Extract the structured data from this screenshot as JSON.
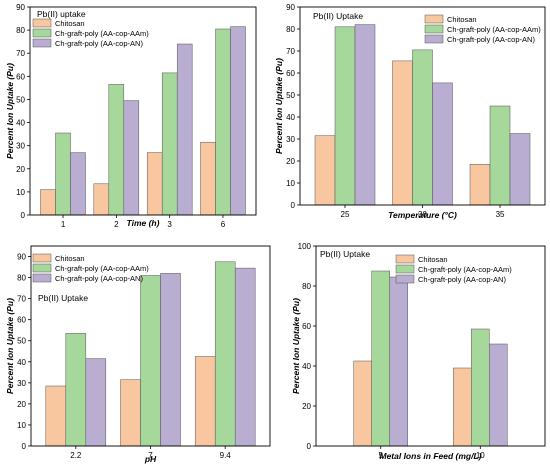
{
  "chart_data": [
    {
      "type": "bar",
      "title": "Pb(II) uptake",
      "xlabel": "Time (h)",
      "ylabel": "Percent Ion Uptake (Pu)",
      "categories": [
        "1",
        "2",
        "3",
        "6"
      ],
      "ylim": [
        0,
        90
      ],
      "yticks": [
        0,
        10,
        20,
        30,
        40,
        50,
        60,
        70,
        80,
        90
      ],
      "legend_position": "top-left",
      "series": [
        {
          "name": "Chitosan",
          "color": "#f8c79f",
          "values": [
            11,
            13.5,
            27,
            31.5
          ]
        },
        {
          "name": "Ch-graft-poly (AA-cop-AAm)",
          "color": "#a6d79b",
          "values": [
            35.5,
            56.5,
            61.5,
            80.5
          ]
        },
        {
          "name": "Ch-graft-poly (AA-cop-AN)",
          "color": "#b9add1",
          "values": [
            27,
            49.5,
            74,
            81.5
          ]
        }
      ]
    },
    {
      "type": "bar",
      "title": "Pb(II) Uptake",
      "xlabel": "Temperature (°C)",
      "ylabel": "Percent Ion Uptake (Pu)",
      "categories": [
        "25",
        "30",
        "35"
      ],
      "ylim": [
        0,
        90
      ],
      "yticks": [
        0,
        10,
        20,
        30,
        40,
        50,
        60,
        70,
        80,
        90
      ],
      "legend_position": "top-right",
      "series": [
        {
          "name": "Chitosan",
          "color": "#f8c79f",
          "values": [
            31.5,
            65.5,
            18.5
          ]
        },
        {
          "name": "Ch-graft-poly (AA-cop-AAm)",
          "color": "#a6d79b",
          "values": [
            81,
            70.5,
            45
          ]
        },
        {
          "name": "Ch-graft-poly (AA-cop-AN)",
          "color": "#b9add1",
          "values": [
            82,
            55.5,
            32.5
          ]
        }
      ]
    },
    {
      "type": "bar",
      "title": "Pb(II) Uptake",
      "xlabel": "pH",
      "ylabel": "Percent Ion Uptake (Pu)",
      "categories": [
        "2.2",
        "7",
        "9.4"
      ],
      "ylim": [
        0,
        95
      ],
      "yticks": [
        0,
        10,
        20,
        30,
        40,
        50,
        60,
        70,
        80,
        90
      ],
      "legend_position": "top-left",
      "series": [
        {
          "name": "Chitosan",
          "color": "#f8c79f",
          "values": [
            28.5,
            31.5,
            42.5
          ]
        },
        {
          "name": "Ch-graft-poly (AA-cop-AAm)",
          "color": "#a6d79b",
          "values": [
            53.5,
            81,
            87.5
          ]
        },
        {
          "name": "Ch-graft-poly (AA-cop-AN)",
          "color": "#b9add1",
          "values": [
            41.5,
            82,
            84.5
          ]
        }
      ]
    },
    {
      "type": "bar",
      "title": "Pb(II) Uptake",
      "xlabel": "Metal Ions in Feed (mg/L)",
      "ylabel": "Percent Ion Uptake (Pu)",
      "categories": [
        "5",
        "10"
      ],
      "ylim": [
        0,
        100
      ],
      "yticks": [
        0,
        20,
        40,
        60,
        80,
        100
      ],
      "legend_position": "top-right",
      "series": [
        {
          "name": "Chitosan",
          "color": "#f8c79f",
          "values": [
            42.5,
            39
          ]
        },
        {
          "name": "Ch-graft-poly (AA-cop-AAm)",
          "color": "#a6d79b",
          "values": [
            87.5,
            58.5
          ]
        },
        {
          "name": "Ch-graft-poly (AA-cop-AN)",
          "color": "#b9add1",
          "values": [
            84.5,
            51
          ]
        }
      ]
    }
  ]
}
